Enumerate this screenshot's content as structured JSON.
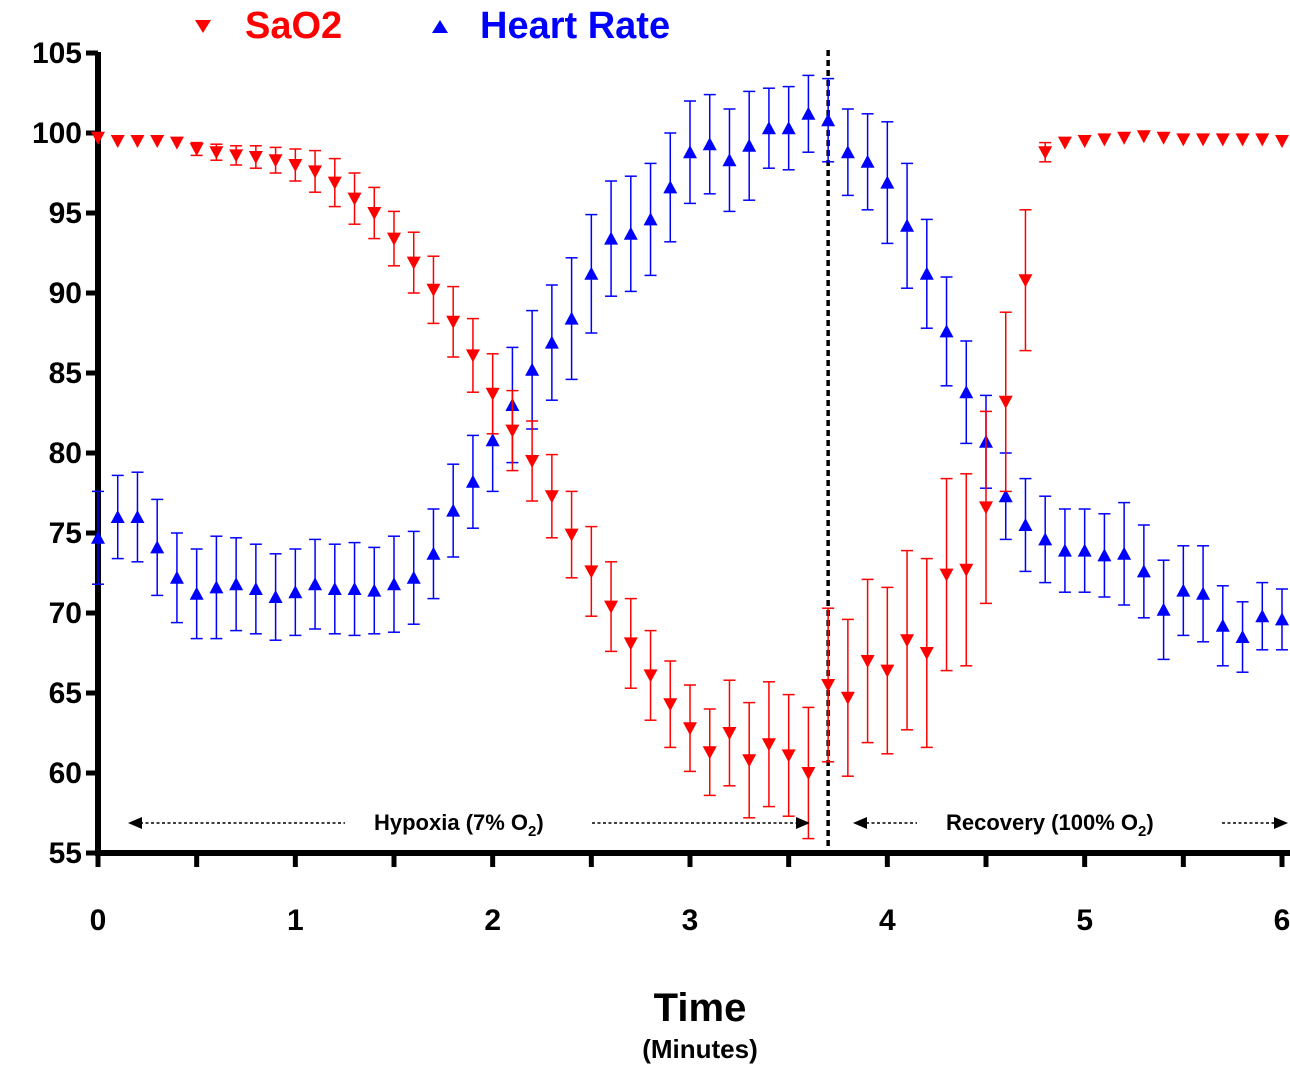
{
  "chart_data": {
    "type": "scatter",
    "xlabel": "Time",
    "xlabel_sub": "(Minutes)",
    "ylabel": "",
    "xlim": [
      0,
      6
    ],
    "ylim": [
      55,
      105
    ],
    "xticks": [
      "0",
      "1",
      "2",
      "3",
      "4",
      "5",
      "6"
    ],
    "yticks": [
      "55",
      "60",
      "65",
      "70",
      "75",
      "80",
      "85",
      "90",
      "95",
      "100",
      "105"
    ],
    "legend_position": "top-left",
    "grid": false,
    "event_line_x": 3.7,
    "annotations": {
      "hypoxia": {
        "pre": "Hypoxia (7% O",
        "sub": "2",
        "post": ")"
      },
      "recovery": {
        "pre": "Recovery (100% O",
        "sub": "2",
        "post": ")"
      }
    },
    "series": [
      {
        "name": "SaO2",
        "color": "#ff0000",
        "marker": "triangle-down",
        "x": [
          0,
          0.1,
          0.2,
          0.3,
          0.4,
          0.5,
          0.6,
          0.7,
          0.8,
          0.9,
          1.0,
          1.1,
          1.2,
          1.3,
          1.4,
          1.5,
          1.6,
          1.7,
          1.8,
          1.9,
          2.0,
          2.1,
          2.2,
          2.3,
          2.4,
          2.5,
          2.6,
          2.7,
          2.8,
          2.9,
          3.0,
          3.1,
          3.2,
          3.3,
          3.4,
          3.5,
          3.6,
          3.7,
          3.8,
          3.9,
          4.0,
          4.1,
          4.2,
          4.3,
          4.4,
          4.5,
          4.6,
          4.7,
          4.8,
          4.9,
          5.0,
          5.1,
          5.2,
          5.3,
          5.4,
          5.5,
          5.6,
          5.7,
          5.8,
          5.9,
          6.0
        ],
        "y": [
          99.7,
          99.5,
          99.5,
          99.5,
          99.4,
          99.0,
          98.8,
          98.6,
          98.5,
          98.3,
          98.0,
          97.6,
          96.9,
          95.9,
          95.0,
          93.4,
          91.9,
          90.2,
          88.2,
          86.1,
          83.7,
          81.4,
          79.5,
          77.3,
          74.9,
          72.6,
          70.4,
          68.1,
          66.1,
          64.3,
          62.8,
          61.3,
          62.5,
          60.8,
          61.8,
          61.1,
          60.0,
          65.5,
          64.7,
          67.0,
          66.4,
          68.3,
          67.5,
          72.4,
          72.7,
          76.6,
          83.2,
          90.8,
          98.8,
          99.4,
          99.5,
          99.6,
          99.7,
          99.8,
          99.7,
          99.6,
          99.6,
          99.6,
          99.6,
          99.6,
          99.5
        ],
        "err": [
          0,
          0,
          0,
          0,
          0,
          0.4,
          0.5,
          0.6,
          0.7,
          0.8,
          1.0,
          1.3,
          1.5,
          1.6,
          1.6,
          1.7,
          1.9,
          2.1,
          2.2,
          2.3,
          2.5,
          2.5,
          2.5,
          2.6,
          2.7,
          2.8,
          2.8,
          2.8,
          2.8,
          2.7,
          2.7,
          2.7,
          3.3,
          3.6,
          3.9,
          3.8,
          4.1,
          4.8,
          4.9,
          5.1,
          5.2,
          5.6,
          5.9,
          6.0,
          6.0,
          6.0,
          5.6,
          4.4,
          0.6,
          0,
          0,
          0,
          0,
          0,
          0,
          0,
          0,
          0,
          0,
          0,
          0
        ]
      },
      {
        "name": "Heart Rate",
        "color": "#0000ff",
        "marker": "triangle-up",
        "x": [
          0,
          0.1,
          0.2,
          0.3,
          0.4,
          0.5,
          0.6,
          0.7,
          0.8,
          0.9,
          1.0,
          1.1,
          1.2,
          1.3,
          1.4,
          1.5,
          1.6,
          1.7,
          1.8,
          1.9,
          2.0,
          2.1,
          2.2,
          2.3,
          2.4,
          2.5,
          2.6,
          2.7,
          2.8,
          2.9,
          3.0,
          3.1,
          3.2,
          3.3,
          3.4,
          3.5,
          3.6,
          3.7,
          3.8,
          3.9,
          4.0,
          4.1,
          4.2,
          4.3,
          4.4,
          4.5,
          4.6,
          4.7,
          4.8,
          4.9,
          5.0,
          5.1,
          5.2,
          5.3,
          5.4,
          5.5,
          5.6,
          5.7,
          5.8,
          5.9,
          6.0
        ],
        "y": [
          74.7,
          76.0,
          76.0,
          74.1,
          72.2,
          71.2,
          71.6,
          71.8,
          71.5,
          71.0,
          71.3,
          71.8,
          71.5,
          71.5,
          71.4,
          71.8,
          72.2,
          73.7,
          76.4,
          78.2,
          80.8,
          83.0,
          85.2,
          86.9,
          88.4,
          91.2,
          93.4,
          93.7,
          94.6,
          96.6,
          98.8,
          99.3,
          98.3,
          99.2,
          100.3,
          100.3,
          101.2,
          100.8,
          98.8,
          98.2,
          96.9,
          94.2,
          91.2,
          87.6,
          83.8,
          80.7,
          77.3,
          75.5,
          74.6,
          73.9,
          73.9,
          73.6,
          73.7,
          72.6,
          70.2,
          71.4,
          71.2,
          69.2,
          68.5,
          69.8,
          69.6
        ],
        "err": [
          2.9,
          2.6,
          2.8,
          3.0,
          2.8,
          2.8,
          3.2,
          2.9,
          2.8,
          2.7,
          2.7,
          2.8,
          2.8,
          2.9,
          2.7,
          3.0,
          2.9,
          2.8,
          2.9,
          2.9,
          3.2,
          3.6,
          3.7,
          3.6,
          3.8,
          3.7,
          3.6,
          3.6,
          3.5,
          3.4,
          3.2,
          3.1,
          3.2,
          3.4,
          2.5,
          2.6,
          2.4,
          2.6,
          2.7,
          3.0,
          3.8,
          3.9,
          3.4,
          3.4,
          3.2,
          2.9,
          2.7,
          2.9,
          2.7,
          2.6,
          2.6,
          2.6,
          3.2,
          2.9,
          3.1,
          2.8,
          3.0,
          2.5,
          2.2,
          2.1,
          1.9
        ]
      }
    ]
  }
}
